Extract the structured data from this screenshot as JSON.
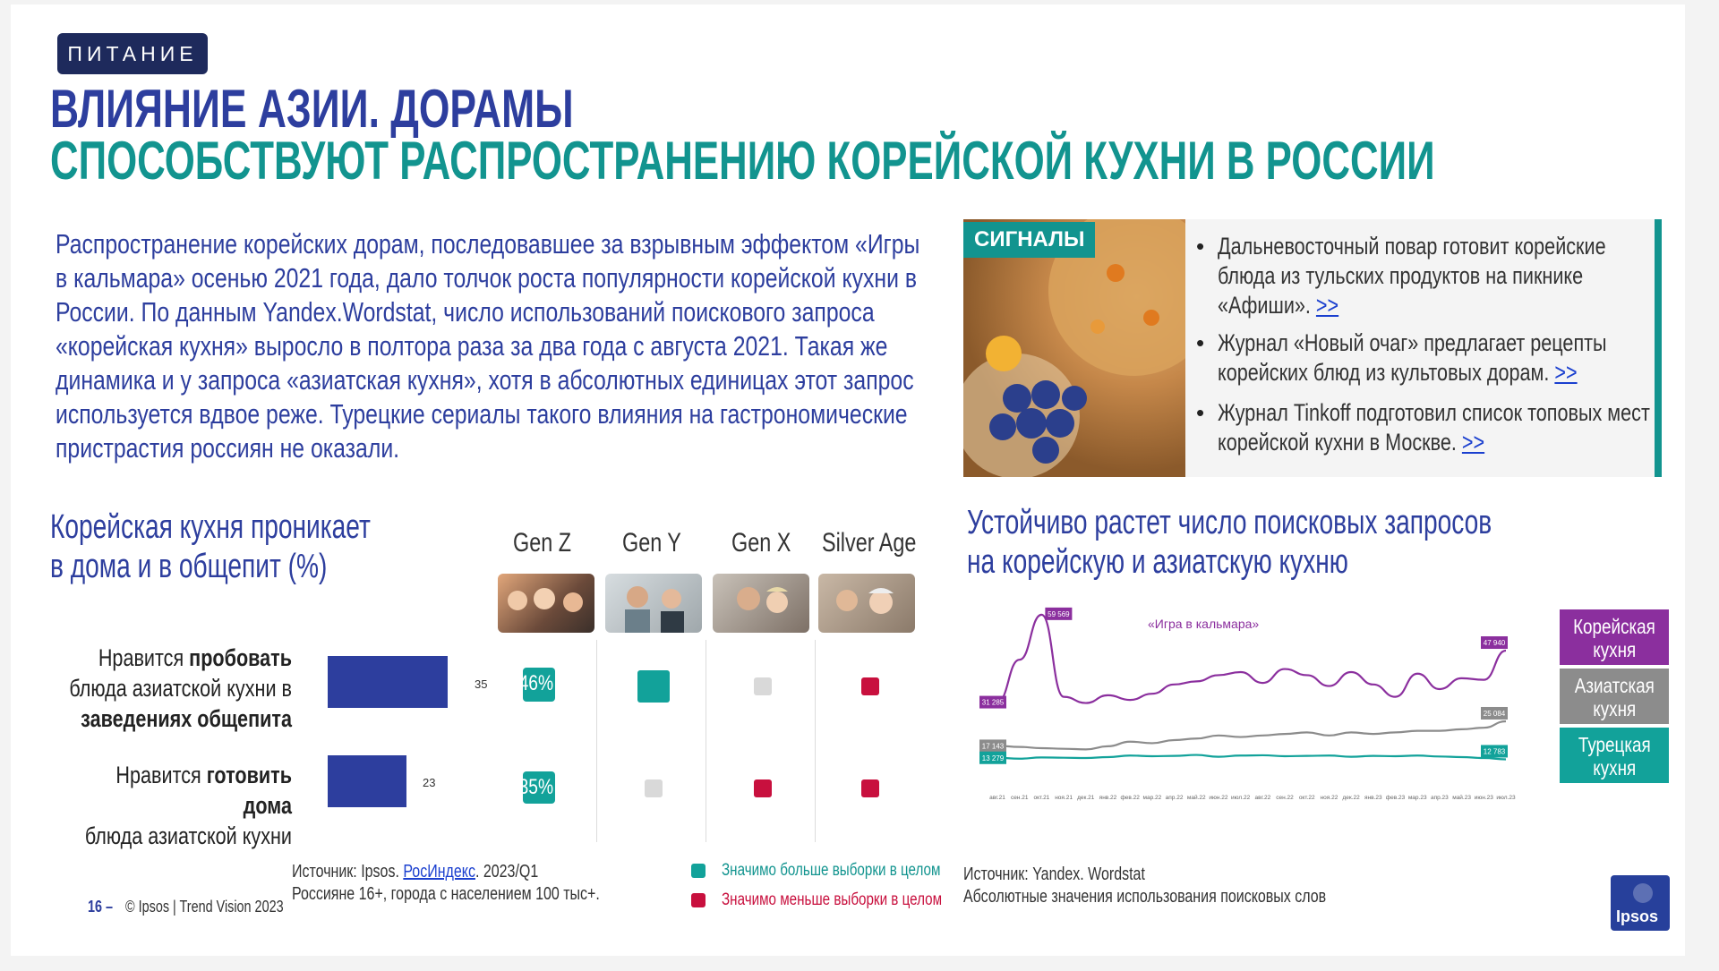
{
  "header": {
    "tag": "ПИТАНИЕ",
    "title_line1": "ВЛИЯНИЕ АЗИИ. ДОРАМЫ",
    "title_line2": "СПОСОБСТВУЮТ РАСПРОСТРАНЕНИЮ КОРЕЙСКОЙ КУХНИ В РОССИИ"
  },
  "intro": {
    "lines": [
      "Распространение корейских дорам, последовавшее за взрывным эффектом «Игры",
      "в кальмара» осенью 2021 года, дало толчок роста популярности корейской кухни в",
      "России. По данным Yandex.Wordstat, число использований поискового запроса",
      "«корейская кухня» выросло в полтора раза за два года с августа 2021. Такая же",
      "динамика и у запроса «азиатская кухня», хотя в абсолютных единицах этот запрос",
      "используется вдвое реже. Турецкие сериалы такого влияния на гастрономические",
      "пристрастия россиян не оказали."
    ]
  },
  "signals": {
    "label": "СИГНАЛЫ",
    "items": [
      {
        "text": "Дальневосточный повар готовит корейские блюда из тульских продуктов на пикнике «Афиши».",
        "link": ">>"
      },
      {
        "text": "Журнал «Новый очаг» предлагает рецепты корейских блюд из культовых  дорам.",
        "link": ">>"
      },
      {
        "text": "Журнал Tinkoff подготовил список топовых мест корейской кухни в Москве.",
        "link": ">>"
      }
    ]
  },
  "left_section": {
    "heading_line1": "Корейская кухня проникает",
    "heading_line2": "в дома и в общепит (%)",
    "generations": [
      "Gen Z",
      "Gen Y",
      "Gen X",
      "Silver Age"
    ],
    "rows": [
      {
        "label_parts": [
          [
            "Нравится ",
            false
          ],
          [
            "пробовать",
            true
          ],
          [
            "",
            false
          ]
        ],
        "label_line2": [
          [
            "блюда азиатской кухни в",
            false
          ]
        ],
        "label_line3": [
          [
            "заведениях общепита",
            true
          ]
        ],
        "value_label": "35",
        "genz_badge": "46%",
        "sig": [
          "more",
          "more",
          "neutral",
          "less"
        ]
      },
      {
        "label_parts": [
          [
            "Нравится ",
            false
          ],
          [
            "готовить дома",
            true
          ]
        ],
        "label_line2": [
          [
            "блюда азиатской кухни",
            false
          ]
        ],
        "label_line3": [],
        "value_label": "23",
        "genz_badge": "35%",
        "sig": [
          "more",
          "neutral",
          "less",
          "less"
        ]
      }
    ],
    "colors": {
      "more": "#12a29a",
      "less": "#c8103e",
      "neutral": "#d9d9d9",
      "bar": "#2d3e9e"
    }
  },
  "chart_data": [
    {
      "type": "bar",
      "orientation": "horizontal",
      "title": "Корейская кухня проникает в дома и в общепит (%)",
      "categories": [
        "Нравится пробовать блюда азиатской кухни в заведениях общепита",
        "Нравится готовить дома блюда азиатской кухни"
      ],
      "values": [
        35,
        23
      ]
    },
    {
      "type": "line",
      "title": "Устойчиво растет число поисковых запросов на корейскую и азиатскую кухню",
      "x": [
        "авг.21",
        "сен.21",
        "окт.21",
        "ноя.21",
        "дек.21",
        "янв.22",
        "фев.22",
        "мар.22",
        "апр.22",
        "май.22",
        "июн.22",
        "июл.22",
        "авг.22",
        "сен.22",
        "окт.22",
        "ноя.22",
        "дек.22",
        "янв.23",
        "фев.23",
        "мар.23",
        "апр.23",
        "май.23",
        "июн.23",
        "июл.23"
      ],
      "series": [
        {
          "name": "Корейская кухня",
          "color": "#8b2f9e",
          "values": [
            31285,
            45000,
            59569,
            33000,
            31000,
            33500,
            32000,
            34000,
            37000,
            38000,
            40000,
            41000,
            37500,
            42000,
            40000,
            36500,
            41000,
            37000,
            33000,
            40500,
            35500,
            39000,
            38500,
            47940
          ]
        },
        {
          "name": "Азиатская кухня",
          "color": "#8c8c8c",
          "values": [
            17143,
            16800,
            16400,
            16200,
            16000,
            17000,
            18500,
            18000,
            19000,
            19500,
            20500,
            20000,
            20500,
            21000,
            21500,
            20500,
            21500,
            21000,
            21500,
            22000,
            22000,
            22500,
            23000,
            25084
          ]
        },
        {
          "name": "Турецкая кухня",
          "color": "#12a29a",
          "values": [
            13279,
            13000,
            13400,
            13300,
            13200,
            13500,
            14000,
            13800,
            13900,
            14200,
            13600,
            14000,
            14100,
            13800,
            13900,
            14000,
            13600,
            13900,
            13800,
            14000,
            13700,
            13500,
            13200,
            12783
          ]
        }
      ],
      "point_labels": [
        {
          "series": 0,
          "index": 0,
          "text": "31 285"
        },
        {
          "series": 0,
          "index": 2,
          "text": "59 569"
        },
        {
          "series": 0,
          "index": 23,
          "text": "47 940"
        },
        {
          "series": 1,
          "index": 0,
          "text": "17 143"
        },
        {
          "series": 1,
          "index": 23,
          "text": "25 084"
        },
        {
          "series": 2,
          "index": 0,
          "text": "13 279"
        },
        {
          "series": 2,
          "index": 23,
          "text": "12 783"
        }
      ],
      "annotation": "«Игра в кальмара»",
      "ylim": [
        8000,
        63000
      ]
    }
  ],
  "right_section": {
    "heading_line1": "Устойчиво растет число поисковых запросов",
    "heading_line2": "на корейскую и азиатскую кухню",
    "legend": [
      {
        "line1": "Корейская",
        "line2": "кухня",
        "color": "#8b2f9e"
      },
      {
        "line1": "Азиатская",
        "line2": "кухня",
        "color": "#8c8c8c"
      },
      {
        "line1": "Турецкая",
        "line2": "кухня",
        "color": "#12a29a"
      }
    ]
  },
  "footer": {
    "source_left_1_prefix": "Источник: Ipsos. ",
    "source_left_1_link": "РосИндекс",
    "source_left_1_suffix": ". 2023/Q1",
    "source_left_2": "Россияне 16+, города с населением 100 тыс+.",
    "legend_more": "Значимо больше выборки в целом",
    "legend_less": "Значимо меньше выборки в целом",
    "source_right_1": "Источник: Yandex. Wordstat",
    "source_right_2": "Абсолютные значения использования поисковых слов",
    "page_number": "16 –",
    "copyright": "© Ipsos | Trend Vision 2023",
    "logo_text": "Ipsos"
  }
}
